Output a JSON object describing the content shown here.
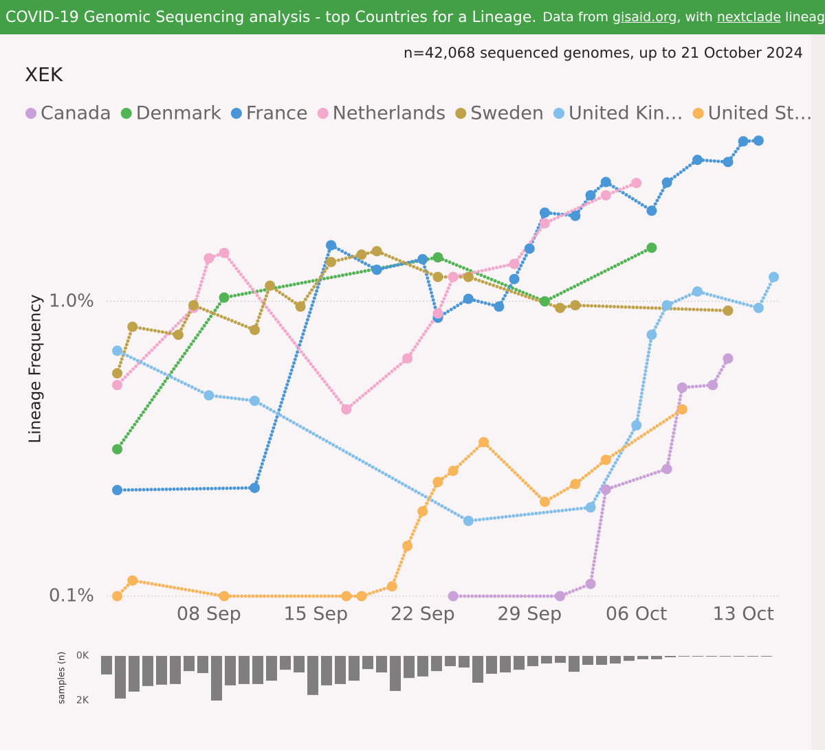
{
  "header": {
    "title": "COVID-19 Genomic Sequencing analysis - top Countries for a Lineage.",
    "source_prefix": "Data from",
    "source_link": "gisaid.org",
    "source_mid": ", with",
    "lineage_link": "nextclade",
    "source_suffix": "lineages So"
  },
  "chart_data": [
    {
      "type": "line",
      "title": "XEK",
      "note": "n=42,068 sequenced genomes, up to 21 October 2024",
      "y_label": "Lineage Frequency",
      "log_scale": true,
      "grid": true,
      "xlim": [
        1.3,
        45.2
      ],
      "xticks": [
        {
          "value": 8,
          "label": "08 Sep"
        },
        {
          "value": 15,
          "label": "15 Sep"
        },
        {
          "value": 22,
          "label": "22 Sep"
        },
        {
          "value": 29,
          "label": "29 Sep"
        },
        {
          "value": 36,
          "label": "06 Oct"
        },
        {
          "value": 43,
          "label": "13 Oct"
        }
      ],
      "ylim": [
        0.1,
        3.6
      ],
      "yticks": [
        {
          "value": 0.1,
          "label": "0.1%"
        },
        {
          "value": 1.0,
          "label": "1.0%"
        }
      ],
      "series": [
        {
          "name": "Canada",
          "color": "#c9a0d8",
          "x": [
            24,
            31,
            33,
            34,
            38,
            39,
            41,
            42
          ],
          "values": [
            0.1,
            0.1,
            0.11,
            0.23,
            0.27,
            0.51,
            0.52,
            0.64
          ]
        },
        {
          "name": "Denmark",
          "color": "#52b455",
          "x": [
            2,
            9,
            23,
            30,
            37
          ],
          "values": [
            0.315,
            1.03,
            1.41,
            1.0,
            1.52
          ]
        },
        {
          "name": "France",
          "color": "#4a97d8",
          "x": [
            2,
            11,
            16,
            19,
            22,
            23,
            25,
            27,
            28,
            29,
            30,
            32,
            33,
            34,
            37,
            38,
            40,
            42,
            43,
            44
          ],
          "values": [
            0.229,
            0.233,
            1.55,
            1.28,
            1.39,
            0.88,
            1.02,
            0.96,
            1.19,
            1.51,
            2.0,
            1.95,
            2.29,
            2.54,
            2.03,
            2.53,
            3.02,
            2.97,
            3.49,
            3.51
          ]
        },
        {
          "name": "Netherlands",
          "color": "#f3a8cc",
          "x": [
            2,
            7,
            8,
            9,
            17,
            21,
            23,
            24,
            28,
            30,
            34,
            36
          ],
          "values": [
            0.52,
            0.95,
            1.4,
            1.46,
            0.43,
            0.64,
            0.91,
            1.21,
            1.34,
            1.84,
            2.29,
            2.52
          ]
        },
        {
          "name": "Sweden",
          "color": "#bfa24a",
          "x": [
            2,
            3,
            6,
            7,
            11,
            12,
            14,
            16,
            18,
            19,
            23,
            25,
            31,
            32,
            42
          ],
          "values": [
            0.57,
            0.82,
            0.77,
            0.97,
            0.8,
            1.13,
            0.96,
            1.36,
            1.44,
            1.48,
            1.21,
            1.21,
            0.95,
            0.97,
            0.93
          ]
        },
        {
          "name": "United Kin…",
          "color": "#82bfea",
          "x": [
            2,
            8,
            11,
            25,
            33,
            36,
            37,
            38,
            40,
            44,
            45
          ],
          "values": [
            0.68,
            0.48,
            0.46,
            0.18,
            0.2,
            0.38,
            0.77,
            0.97,
            1.08,
            0.95,
            1.21
          ]
        },
        {
          "name": "United St…",
          "color": "#f8b55a",
          "x": [
            2,
            3,
            9,
            17,
            18,
            20,
            21,
            22,
            23,
            24,
            26,
            30,
            32,
            34,
            39
          ],
          "values": [
            0.1,
            0.113,
            0.1,
            0.1,
            0.1,
            0.108,
            0.148,
            0.194,
            0.244,
            0.266,
            0.333,
            0.209,
            0.24,
            0.29,
            0.43
          ]
        }
      ]
    },
    {
      "type": "bar",
      "y_label": "samples (n)",
      "inverted": true,
      "color": "#7f7f7f",
      "ylim": [
        0,
        2000
      ],
      "yticks": [
        {
          "value": 0,
          "label": "0K"
        },
        {
          "value": 2000,
          "label": "2K"
        }
      ],
      "values": [
        830,
        1910,
        1600,
        1350,
        1290,
        1260,
        680,
        770,
        2000,
        1320,
        1260,
        1260,
        1110,
        620,
        740,
        1750,
        1320,
        1260,
        1110,
        590,
        740,
        1570,
        990,
        920,
        680,
        460,
        520,
        1200,
        800,
        740,
        620,
        460,
        340,
        310,
        710,
        400,
        400,
        340,
        220,
        150,
        150,
        60,
        30,
        30,
        30,
        20,
        20,
        20,
        20
      ]
    }
  ]
}
